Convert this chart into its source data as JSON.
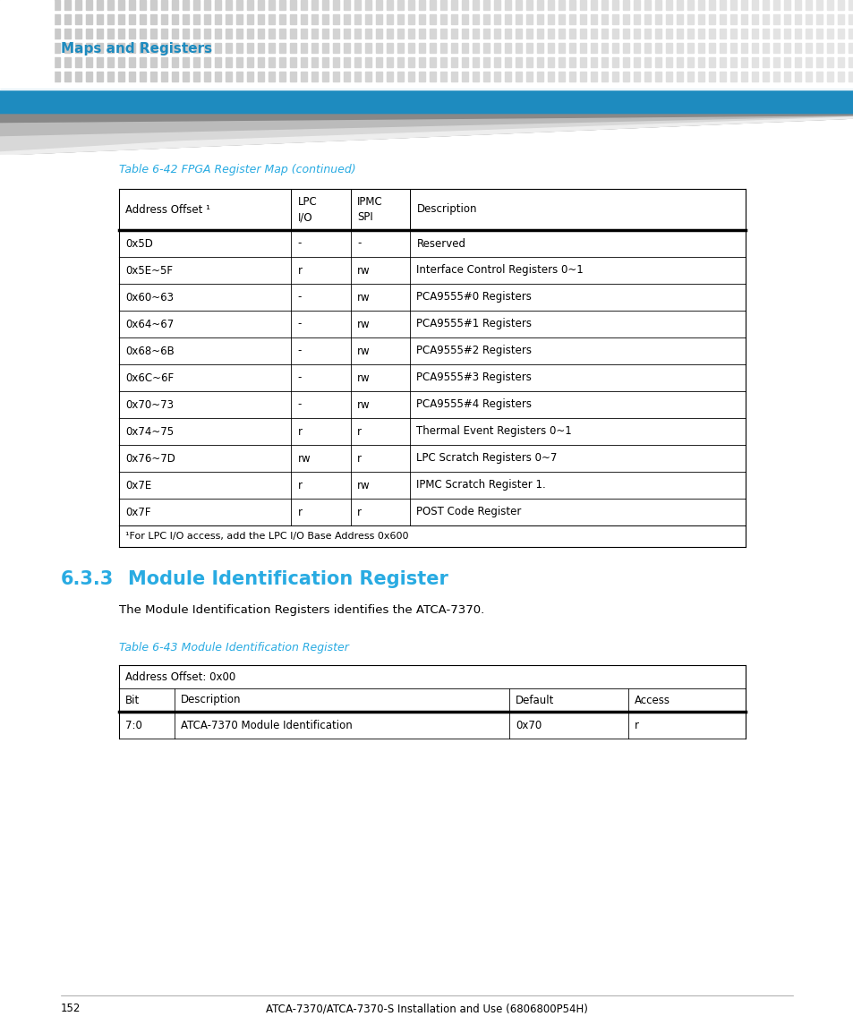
{
  "page_bg": "#ffffff",
  "header_dot_color_dark": "#c8c8c8",
  "header_dot_color_light": "#e0e0e0",
  "header_blue_bar_color": "#1e8bbf",
  "header_title": "Maps and Registers",
  "header_title_color": "#1e8bbf",
  "table1_title": "Table 6-42 FPGA Register Map (continued)",
  "table1_title_color": "#29abe2",
  "table1_rows": [
    [
      "0x5D",
      "-",
      "-",
      "Reserved"
    ],
    [
      "0x5E~5F",
      "r",
      "rw",
      "Interface Control Registers 0~1"
    ],
    [
      "0x60~63",
      "-",
      "rw",
      "PCA9555#0 Registers"
    ],
    [
      "0x64~67",
      "-",
      "rw",
      "PCA9555#1 Registers"
    ],
    [
      "0x68~6B",
      "-",
      "rw",
      "PCA9555#2 Registers"
    ],
    [
      "0x6C~6F",
      "-",
      "rw",
      "PCA9555#3 Registers"
    ],
    [
      "0x70~73",
      "-",
      "rw",
      "PCA9555#4 Registers"
    ],
    [
      "0x74~75",
      "r",
      "r",
      "Thermal Event Registers 0~1"
    ],
    [
      "0x76~7D",
      "rw",
      "r",
      "LPC Scratch Registers 0~7"
    ],
    [
      "0x7E",
      "r",
      "rw",
      "IPMC Scratch Register 1."
    ],
    [
      "0x7F",
      "r",
      "r",
      "POST Code Register"
    ]
  ],
  "table1_footnote": "¹For LPC I/O access, add the LPC I/O Base Address 0x600",
  "section_number": "6.3.3",
  "section_title": "Module Identification Register",
  "section_color": "#29abe2",
  "section_body": "The Module Identification Registers identifies the ATCA-7370.",
  "table2_title": "Table 6-43 Module Identification Register",
  "table2_title_color": "#29abe2",
  "table2_addr_row": "Address Offset: 0x00",
  "table2_headers": [
    "Bit",
    "Description",
    "Default",
    "Access"
  ],
  "table2_rows": [
    [
      "7:0",
      "ATCA-7370 Module Identification",
      "0x70",
      "r"
    ]
  ],
  "footer_page": "152",
  "footer_text": "ATCA-7370/ATCA-7370-S Installation and Use (6806800P54H)"
}
